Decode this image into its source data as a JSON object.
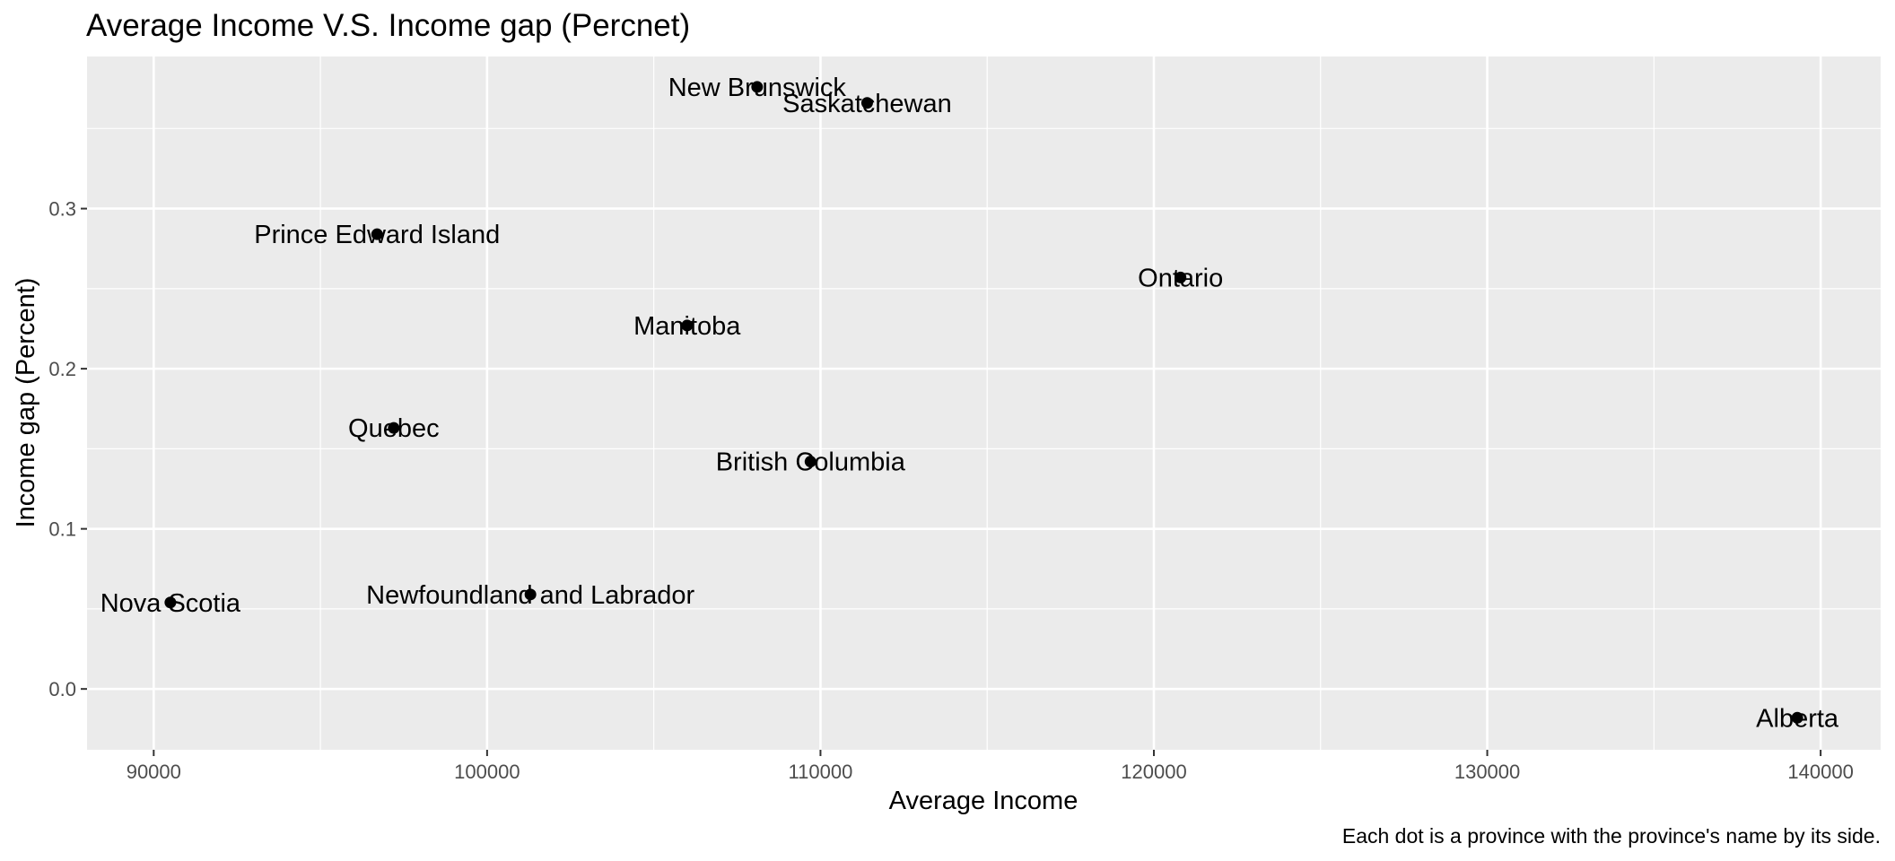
{
  "chart_data": {
    "type": "scatter",
    "title": "Average Income V.S. Income gap (Percnet)",
    "caption": "Each dot is a province with the province's name by its side.",
    "xlabel": "Average Income",
    "ylabel": "Income gap (Percent)",
    "xlim": [
      88000,
      141800
    ],
    "ylim": [
      -0.038,
      0.395
    ],
    "x_ticks": [
      90000,
      100000,
      110000,
      120000,
      130000,
      140000
    ],
    "x_tick_labels": [
      "90000",
      "100000",
      "110000",
      "120000",
      "130000",
      "140000"
    ],
    "y_ticks": [
      0.0,
      0.1,
      0.2,
      0.3
    ],
    "y_tick_labels": [
      "0.0",
      "0.1",
      "0.2",
      "0.3"
    ],
    "grid": true,
    "legend": "none",
    "background_color": "#ebebeb",
    "grid_color": "#ffffff",
    "point_color": "#000000",
    "points": [
      {
        "label": "New Brunswick",
        "x": 108100,
        "y": 0.376
      },
      {
        "label": "Saskatchewan",
        "x": 111400,
        "y": 0.366
      },
      {
        "label": "Prince Edward Island",
        "x": 96700,
        "y": 0.284
      },
      {
        "label": "Ontario",
        "x": 120800,
        "y": 0.257
      },
      {
        "label": "Manitoba",
        "x": 106000,
        "y": 0.227
      },
      {
        "label": "Quebec",
        "x": 97200,
        "y": 0.163
      },
      {
        "label": "British Columbia",
        "x": 109700,
        "y": 0.142
      },
      {
        "label": "Newfoundland and Labrador",
        "x": 101300,
        "y": 0.059
      },
      {
        "label": "Nova Scotia",
        "x": 90500,
        "y": 0.054
      },
      {
        "label": "Alberta",
        "x": 139300,
        "y": -0.018
      }
    ]
  }
}
